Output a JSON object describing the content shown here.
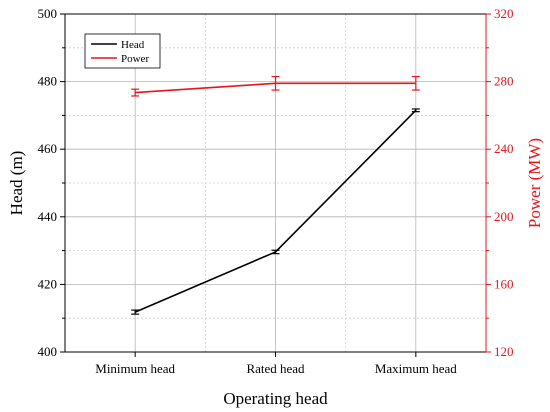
{
  "chart_data": {
    "type": "line",
    "categories": [
      "Minimum head",
      "Rated head",
      "Maximum head"
    ],
    "xlabel": "Operating head",
    "ylabel": "Head (m)",
    "y2label": "Power (MW)",
    "ylim": [
      400,
      500
    ],
    "y2lim": [
      120,
      320
    ],
    "yticks": [
      400,
      420,
      440,
      460,
      480,
      500
    ],
    "y2ticks": [
      120,
      160,
      200,
      240,
      280,
      320
    ],
    "grid": true,
    "legend_position": "top-left",
    "series": [
      {
        "name": "Head",
        "axis": "left",
        "color": "#000000",
        "values": [
          411.8,
          429.6,
          471.5
        ],
        "error": [
          0.6,
          0.5,
          0.4
        ]
      },
      {
        "name": "Power",
        "axis": "right",
        "color": "#e8141b",
        "values": [
          273.5,
          279.0,
          279.0
        ],
        "error": [
          2.0,
          4.0,
          4.0
        ]
      }
    ]
  }
}
